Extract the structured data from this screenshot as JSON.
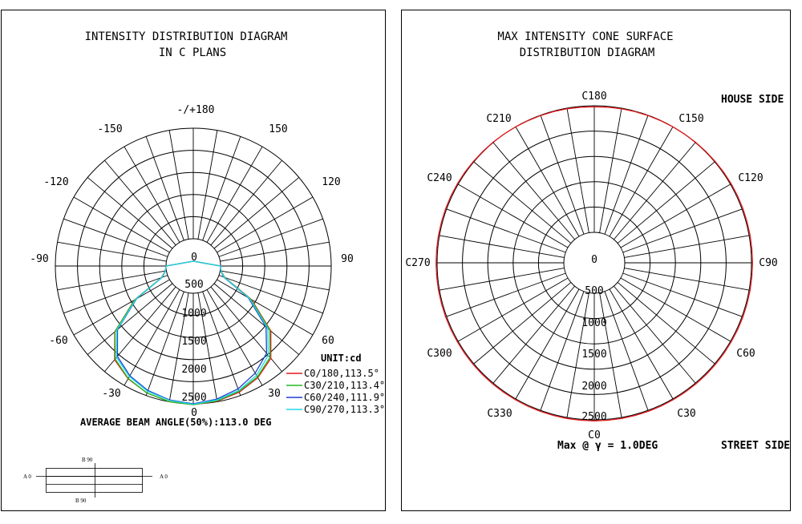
{
  "left_panel": {
    "title_line1": "INTENSITY DISTRIBUTION DIAGRAM",
    "title_line2": "IN C PLANS",
    "angle_labels": [
      "-/+180",
      "150",
      "120",
      "90",
      "60",
      "30",
      "0",
      "-30",
      "-60",
      "-90",
      "-120",
      "-150"
    ],
    "ring_labels": [
      "0",
      "500",
      "1000",
      "1500",
      "2000",
      "2500"
    ],
    "unit_label": "UNIT:cd",
    "beam_angle_text": "AVERAGE BEAM ANGLE(50%):113.0 DEG",
    "legend": [
      {
        "label": "C0/180,113.5°",
        "color": "#e41a1c"
      },
      {
        "label": "C30/210,113.4°",
        "color": "#22bb22"
      },
      {
        "label": "C60/240,111.9°",
        "color": "#1f3fd0"
      },
      {
        "label": "C90/270,113.3°",
        "color": "#22d8e0"
      }
    ],
    "inset": {
      "top": "B 90",
      "bottom": "B 90",
      "left": "A 0",
      "right": "A 0"
    }
  },
  "right_panel": {
    "title_line1": "MAX INTENSITY CONE SURFACE",
    "title_line2": "DISTRIBUTION DIAGRAM",
    "angle_labels": [
      "C180",
      "C150",
      "C120",
      "C90",
      "C60",
      "C30",
      "C0",
      "C330",
      "C300",
      "C270",
      "C240",
      "C210"
    ],
    "ring_labels": [
      "0",
      "500",
      "1000",
      "1500",
      "2000",
      "2500"
    ],
    "house_side": "HOUSE SIDE",
    "street_side": "STREET SIDE",
    "max_text": "Max @ γ = 1.0DEG",
    "curve_color": "#e41a1c"
  },
  "chart_data": [
    {
      "type": "polar",
      "title": "INTENSITY DISTRIBUTION DIAGRAM IN C PLANS",
      "unit": "cd",
      "rlim": [
        0,
        2500
      ],
      "gamma_deg": [
        0,
        10,
        20,
        30,
        40,
        50,
        60,
        70,
        80,
        90
      ],
      "series": [
        {
          "name": "C0/180,113.5°",
          "right": [
            2520,
            2490,
            2420,
            2300,
            2110,
            1670,
            900,
            140,
            20,
            0
          ],
          "left": [
            2520,
            2500,
            2440,
            2330,
            2150,
            1700,
            920,
            150,
            25,
            0
          ]
        },
        {
          "name": "C30/210,113.4°",
          "right": [
            2520,
            2480,
            2400,
            2280,
            2080,
            1640,
            880,
            130,
            20,
            0
          ],
          "left": [
            2520,
            2500,
            2440,
            2320,
            2130,
            1690,
            910,
            140,
            22,
            0
          ]
        },
        {
          "name": "C60/240,111.9°",
          "right": [
            2490,
            2440,
            2340,
            2180,
            1960,
            1530,
            820,
            110,
            15,
            0
          ],
          "left": [
            2500,
            2460,
            2380,
            2250,
            2050,
            1620,
            860,
            130,
            20,
            0
          ]
        },
        {
          "name": "C90/270,113.3°",
          "right": [
            2500,
            2460,
            2380,
            2240,
            2020,
            1580,
            850,
            120,
            18,
            0
          ],
          "left": [
            2510,
            2470,
            2400,
            2270,
            2080,
            1640,
            880,
            140,
            20,
            0
          ]
        }
      ]
    },
    {
      "type": "polar",
      "title": "MAX INTENSITY CONE SURFACE DISTRIBUTION DIAGRAM",
      "rlim": [
        0,
        2500
      ],
      "c_deg": [
        0,
        30,
        60,
        90,
        120,
        150,
        180,
        210,
        240,
        270,
        300,
        330
      ],
      "values": [
        2520,
        2520,
        2520,
        2520,
        2520,
        2500,
        2480,
        2500,
        2520,
        2520,
        2520,
        2520
      ]
    }
  ]
}
